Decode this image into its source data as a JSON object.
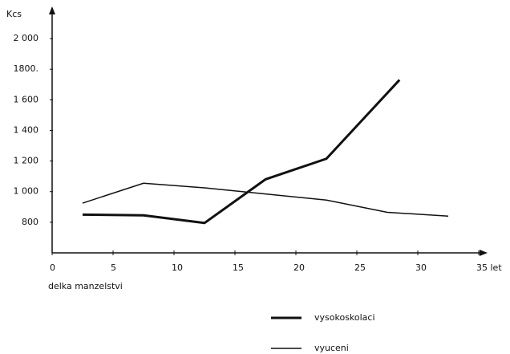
{
  "chart_data": {
    "type": "line",
    "y_label": "Kcs",
    "x_label": "delka manzelstvi",
    "xlim": [
      0,
      37
    ],
    "xticks": [
      0,
      5,
      10,
      15,
      20,
      25,
      30,
      {
        "value": 35,
        "label": "35 let"
      }
    ],
    "ylim": [
      600,
      2100
    ],
    "yticks": [
      {
        "value": 800,
        "label": "800"
      },
      {
        "value": 1000,
        "label": "1 000"
      },
      {
        "value": 1200,
        "label": "1 200"
      },
      {
        "value": 1400,
        "label": "1 400"
      },
      {
        "value": 1600,
        "label": "1 600"
      },
      {
        "value": 1800,
        "label": "1800."
      },
      {
        "value": 2000,
        "label": "2 000"
      }
    ],
    "series": [
      {
        "name": "vysokoskolaci",
        "color": "#111111",
        "width": 3,
        "x": [
          2.5,
          7.5,
          12.5,
          17.5,
          22.5,
          28.5
        ],
        "values": [
          850,
          845,
          795,
          1080,
          1215,
          1730
        ]
      },
      {
        "name": "vyuceni",
        "color": "#111111",
        "width": 1.5,
        "x": [
          2.5,
          7.5,
          12.5,
          17.5,
          22.5,
          27.5,
          32.5
        ],
        "values": [
          925,
          1055,
          1025,
          985,
          945,
          865,
          840
        ]
      }
    ]
  }
}
